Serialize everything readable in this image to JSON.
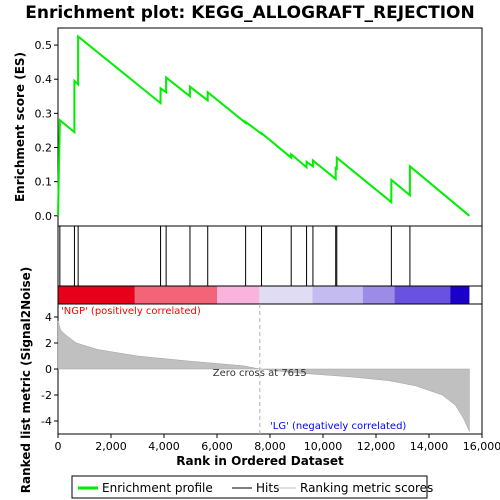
{
  "chart_data": {
    "type": "line",
    "title": "Enrichment plot: KEGG_ALLOGRAFT_REJECTION",
    "xlabel": "Rank in Ordered Dataset",
    "es_ylabel": "Enrichment score (ES)",
    "metric_ylabel": "Ranked list metric (Signal2Noise)",
    "xlim": [
      0,
      16000
    ],
    "x_ticks": [
      0,
      2000,
      4000,
      6000,
      8000,
      10000,
      12000,
      14000,
      16000
    ],
    "x_tick_labels": [
      "0",
      "2,000",
      "4,000",
      "6,000",
      "8,000",
      "10,000",
      "12,000",
      "14,000",
      "16,000"
    ],
    "es_ylim": [
      -0.03,
      0.55
    ],
    "es_ticks": [
      0.0,
      0.1,
      0.2,
      0.3,
      0.4,
      0.5
    ],
    "es_tick_labels": [
      "0.0",
      "0.1",
      "0.2",
      "0.3",
      "0.4",
      "0.5"
    ],
    "metric_ylim": [
      -5,
      5
    ],
    "metric_ticks": [
      4,
      2,
      0,
      -2,
      -4
    ],
    "metric_tick_labels": [
      "4",
      "2",
      "0",
      "-2",
      "-4"
    ],
    "n_genes": 15526,
    "hits": [
      70,
      620,
      760,
      3870,
      4080,
      4980,
      5650,
      7080,
      7680,
      8800,
      9380,
      9620,
      10480,
      10520,
      12580,
      13280
    ],
    "enrichment_profile": [
      {
        "x": 0,
        "es": 0.0
      },
      {
        "x": 70,
        "es": 0.28
      },
      {
        "x": 619,
        "es": 0.245
      },
      {
        "x": 620,
        "es": 0.395
      },
      {
        "x": 759,
        "es": 0.385
      },
      {
        "x": 760,
        "es": 0.525
      },
      {
        "x": 3869,
        "es": 0.33
      },
      {
        "x": 3870,
        "es": 0.373
      },
      {
        "x": 4079,
        "es": 0.362
      },
      {
        "x": 4080,
        "es": 0.405
      },
      {
        "x": 4979,
        "es": 0.35
      },
      {
        "x": 4980,
        "es": 0.378
      },
      {
        "x": 5649,
        "es": 0.338
      },
      {
        "x": 5650,
        "es": 0.362
      },
      {
        "x": 7079,
        "es": 0.272
      },
      {
        "x": 7080,
        "es": 0.275
      },
      {
        "x": 7679,
        "es": 0.24
      },
      {
        "x": 7680,
        "es": 0.242
      },
      {
        "x": 8799,
        "es": 0.17
      },
      {
        "x": 8800,
        "es": 0.18
      },
      {
        "x": 9379,
        "es": 0.142
      },
      {
        "x": 9380,
        "es": 0.158
      },
      {
        "x": 9619,
        "es": 0.145
      },
      {
        "x": 9620,
        "es": 0.162
      },
      {
        "x": 10479,
        "es": 0.108
      },
      {
        "x": 10480,
        "es": 0.14
      },
      {
        "x": 10519,
        "es": 0.138
      },
      {
        "x": 10520,
        "es": 0.17
      },
      {
        "x": 12579,
        "es": 0.04
      },
      {
        "x": 12580,
        "es": 0.105
      },
      {
        "x": 13279,
        "es": 0.06
      },
      {
        "x": 13280,
        "es": 0.145
      },
      {
        "x": 15526,
        "es": 0.0
      }
    ],
    "ranked_metric_profile": [
      {
        "x": 0,
        "v": 3.7
      },
      {
        "x": 100,
        "v": 3.0
      },
      {
        "x": 300,
        "v": 2.6
      },
      {
        "x": 700,
        "v": 2.0
      },
      {
        "x": 1500,
        "v": 1.5
      },
      {
        "x": 3000,
        "v": 1.0
      },
      {
        "x": 5000,
        "v": 0.6
      },
      {
        "x": 7000,
        "v": 0.25
      },
      {
        "x": 7615,
        "v": 0.0
      },
      {
        "x": 9000,
        "v": -0.3
      },
      {
        "x": 11000,
        "v": -0.6
      },
      {
        "x": 12500,
        "v": -0.9
      },
      {
        "x": 13500,
        "v": -1.3
      },
      {
        "x": 14500,
        "v": -2.0
      },
      {
        "x": 15000,
        "v": -2.8
      },
      {
        "x": 15300,
        "v": -3.8
      },
      {
        "x": 15526,
        "v": -4.8
      }
    ],
    "zero_cross_label": "Zero cross at 7615",
    "zero_cross_x": 7615,
    "positive_label": "'NGP' (positively correlated)",
    "negative_label": "'LG' (negatively correlated)",
    "legend": [
      "Enrichment profile",
      "Hits",
      "Ranking metric scores"
    ],
    "colors": {
      "enrichment_line": "#00ee00",
      "hits": "#000000",
      "metric_fill": "#c0c0c0",
      "positive_text": "#ff0000",
      "negative_text": "#0000ff",
      "heat_red": "#e8001a",
      "heat_blue": "#1a00c8"
    },
    "heatmap_segments": [
      {
        "x0": 0,
        "x1": 2900,
        "color": "#e8001a"
      },
      {
        "x0": 2900,
        "x1": 6000,
        "color": "#f26478"
      },
      {
        "x0": 6000,
        "x1": 7600,
        "color": "#f8b4dc"
      },
      {
        "x0": 7600,
        "x1": 9600,
        "color": "#e0dcf4"
      },
      {
        "x0": 9600,
        "x1": 11500,
        "color": "#c4bcf0"
      },
      {
        "x0": 11500,
        "x1": 12700,
        "color": "#9c8ce8"
      },
      {
        "x0": 12700,
        "x1": 14800,
        "color": "#6a52e0"
      },
      {
        "x0": 14800,
        "x1": 15526,
        "color": "#1a00c8"
      }
    ]
  }
}
